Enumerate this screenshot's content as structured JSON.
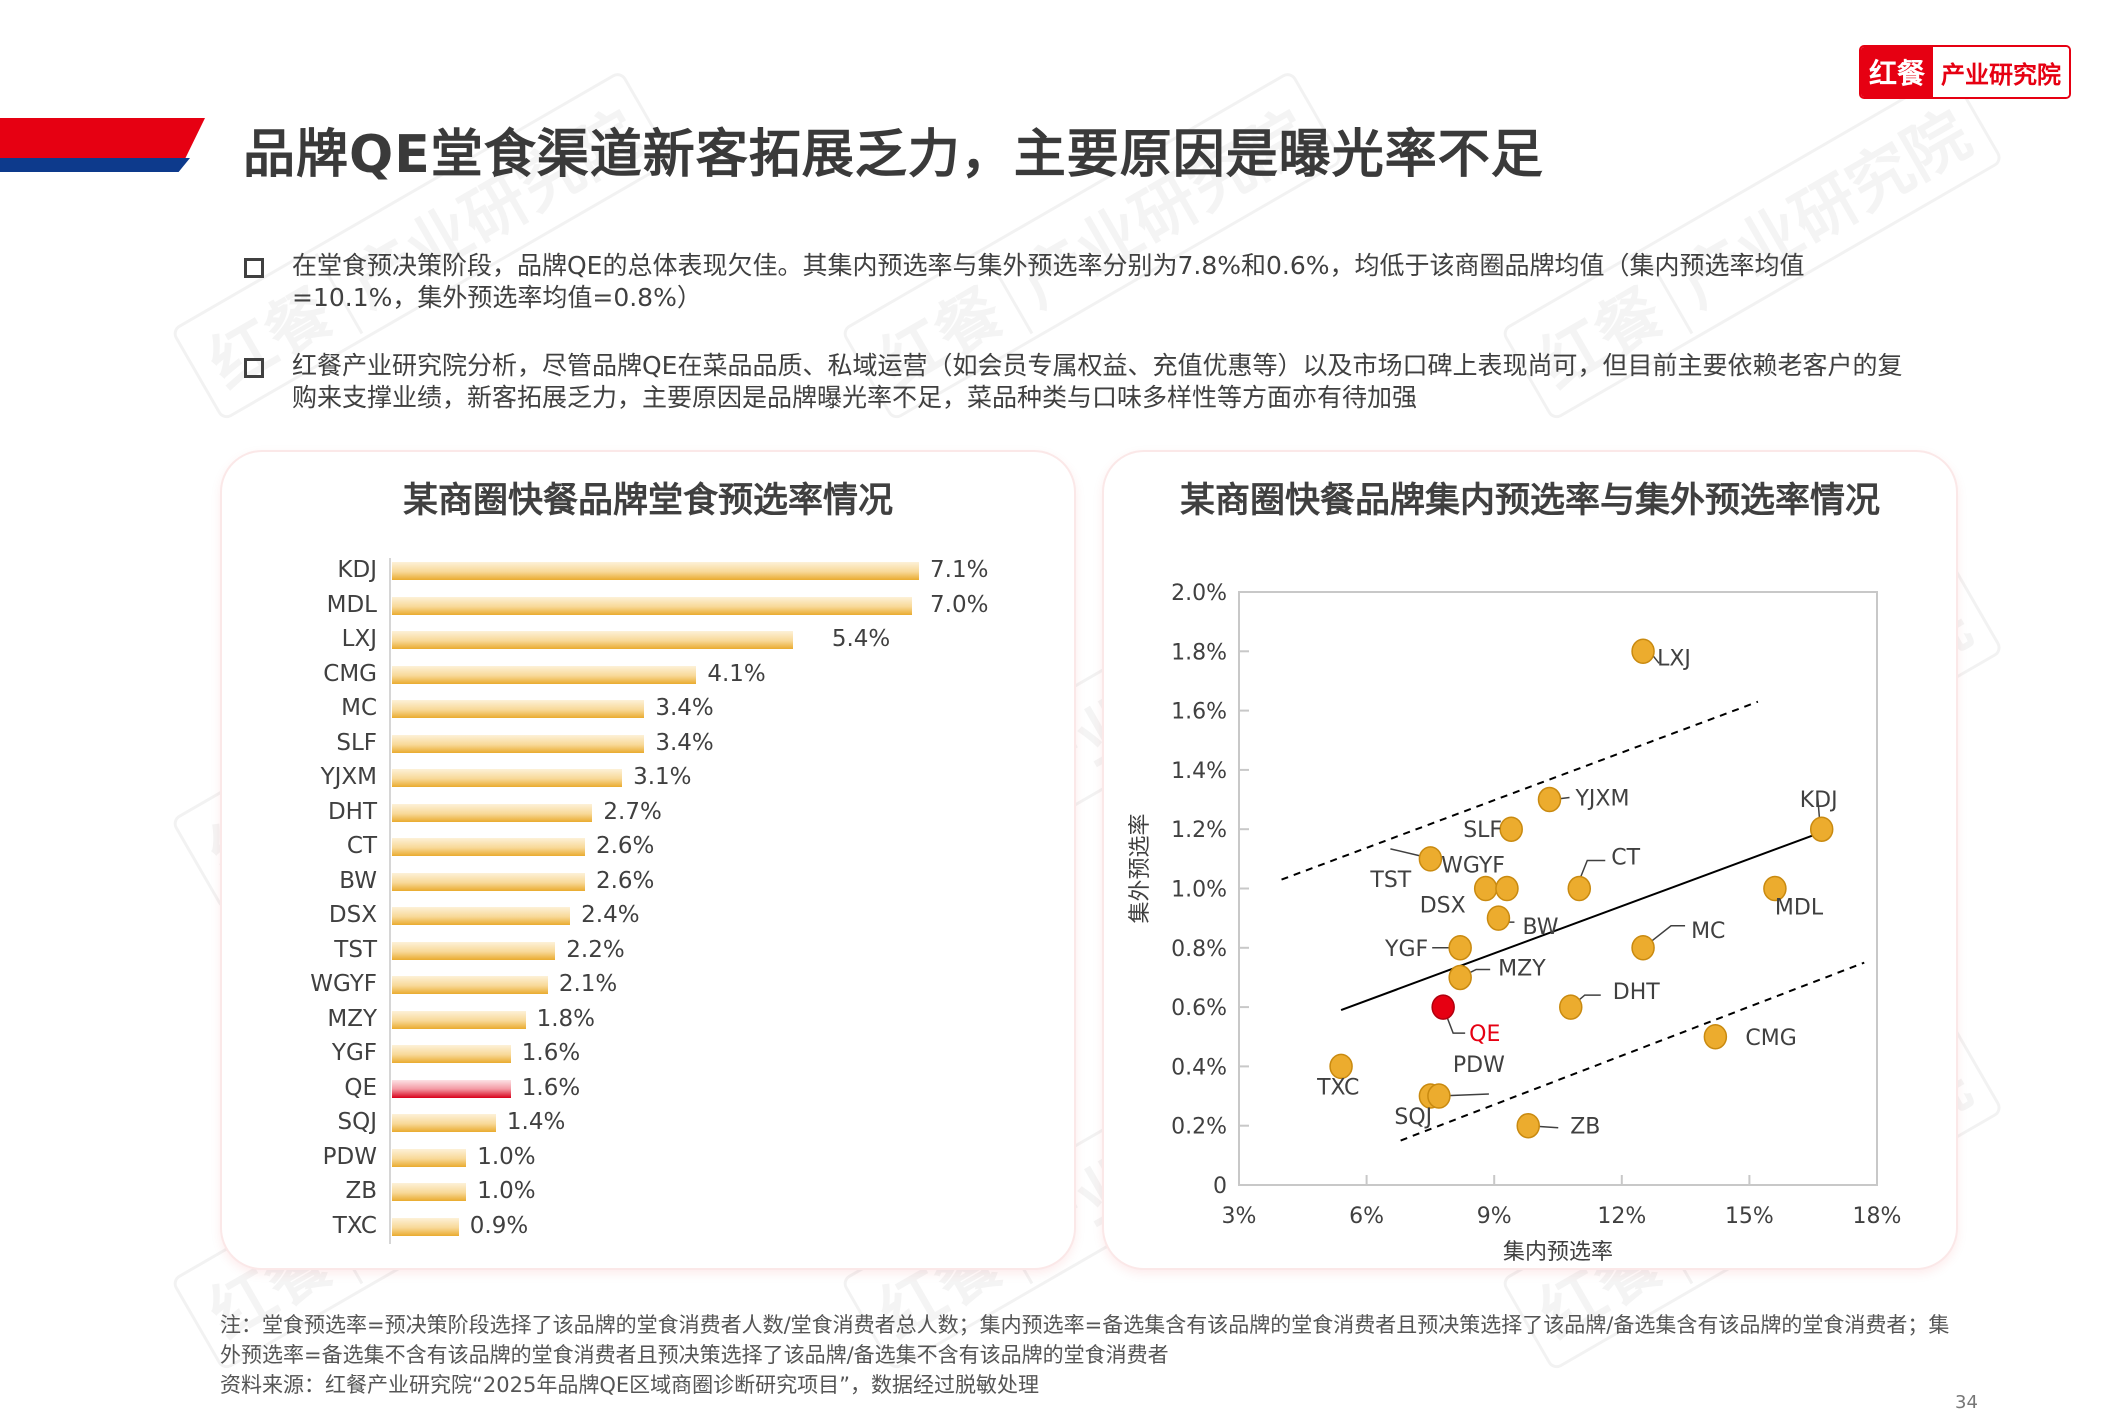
{
  "logo": {
    "brand": "红餐",
    "org": "产业研究院"
  },
  "watermark": {
    "brand": "红餐",
    "org": "产业研究院"
  },
  "page_title": "品牌QE堂食渠道新客拓展乏力，主要原因是曝光率不足",
  "bullets": [
    "在堂食预决策阶段，品牌QE的总体表现欠佳。其集内预选率与集外预选率分别为7.8%和0.6%，均低于该商圈品牌均值（集内预选率均值=10.1%，集外预选率均值=0.8%）",
    "红餐产业研究院分析，尽管品牌QE在菜品品质、私域运营（如会员专属权益、充值优惠等）以及市场口碑上表现尚可，但目前主要依赖老客户的复购来支撑业绩，新客拓展乏力，主要原因是品牌曝光率不足，菜品种类与口味多样性等方面亦有待加强"
  ],
  "footnotes": [
    "注：堂食预选率=预决策阶段选择了该品牌的堂食消费者人数/堂食消费者总人数；集内预选率=备选集含有该品牌的堂食消费者且预决策选择了该品牌/备选集含有该品牌的堂食消费者；集外预选率=备选集不含有该品牌的堂食消费者且预决策选择了该品牌/备选集不含有该品牌的堂食消费者",
    "资料来源：红餐产业研究院“2025年品牌QE区域商圈诊断研究项目”，数据经过脱敏处理"
  ],
  "page_number": "34",
  "colors": {
    "brand_red": "#e60012",
    "brand_blue": "#0d3a8c",
    "bar_gold": "#e9ab2f",
    "highlight_red": "#d8001a"
  },
  "chart_data": [
    {
      "type": "bar",
      "orientation": "horizontal",
      "title": "某商圈快餐品牌堂食预选率情况",
      "categories": [
        "KDJ",
        "MDL",
        "LXJ",
        "CMG",
        "MC",
        "SLF",
        "YJXM",
        "DHT",
        "CT",
        "BW",
        "DSX",
        "TST",
        "WGYF",
        "MZY",
        "YGF",
        "QE",
        "SQJ",
        "PDW",
        "ZB",
        "TXC"
      ],
      "values": [
        7.1,
        7.0,
        5.4,
        4.1,
        3.4,
        3.4,
        3.1,
        2.7,
        2.6,
        2.6,
        2.4,
        2.2,
        2.1,
        1.8,
        1.6,
        1.6,
        1.4,
        1.0,
        1.0,
        0.9
      ],
      "value_labels": [
        "7.1%",
        "7.0%",
        "5.4%",
        "4.1%",
        "3.4%",
        "3.4%",
        "3.1%",
        "2.7%",
        "2.6%",
        "2.6%",
        "2.4%",
        "2.2%",
        "2.1%",
        "1.8%",
        "1.6%",
        "1.6%",
        "1.4%",
        "1.0%",
        "1.0%",
        "0.9%"
      ],
      "highlight": "QE",
      "unit": "%",
      "xlabel": "",
      "ylabel": "",
      "xlim": [
        0,
        7.1
      ],
      "grid": false
    },
    {
      "type": "scatter",
      "title": "某商圈快餐品牌集内预选率与集外预选率情况",
      "xlabel": "集内预选率",
      "ylabel": "集外预选率",
      "xlim": [
        3,
        18
      ],
      "ylim": [
        0,
        2.0
      ],
      "xticks": [
        3,
        6,
        9,
        12,
        15,
        18
      ],
      "xtick_labels": [
        "3%",
        "6%",
        "9%",
        "12%",
        "15%",
        "18%"
      ],
      "yticks": [
        0,
        0.2,
        0.4,
        0.6,
        0.8,
        1.0,
        1.2,
        1.4,
        1.6,
        1.8,
        2.0
      ],
      "ytick_labels": [
        "0",
        "0.2%",
        "0.4%",
        "0.6%",
        "0.8%",
        "1.0%",
        "1.2%",
        "1.4%",
        "1.6%",
        "1.8%",
        "2.0%"
      ],
      "grid": false,
      "highlight": "QE",
      "points": [
        {
          "label": "LXJ",
          "x": 12.5,
          "y": 1.8
        },
        {
          "label": "YJXM",
          "x": 10.3,
          "y": 1.3
        },
        {
          "label": "KDJ",
          "x": 16.7,
          "y": 1.2
        },
        {
          "label": "SLF",
          "x": 9.4,
          "y": 1.2
        },
        {
          "label": "TST",
          "x": 7.5,
          "y": 1.1
        },
        {
          "label": "DSX",
          "x": 8.8,
          "y": 1.0
        },
        {
          "label": "WGYF",
          "x": 9.3,
          "y": 1.0
        },
        {
          "label": "CT",
          "x": 11.0,
          "y": 1.0
        },
        {
          "label": "MDL",
          "x": 15.6,
          "y": 1.0
        },
        {
          "label": "BW",
          "x": 9.1,
          "y": 0.9
        },
        {
          "label": "YGF",
          "x": 8.2,
          "y": 0.8
        },
        {
          "label": "MC",
          "x": 12.5,
          "y": 0.8
        },
        {
          "label": "MZY",
          "x": 8.2,
          "y": 0.7
        },
        {
          "label": "QE",
          "x": 7.8,
          "y": 0.6
        },
        {
          "label": "DHT",
          "x": 10.8,
          "y": 0.6
        },
        {
          "label": "CMG",
          "x": 14.2,
          "y": 0.5
        },
        {
          "label": "TXC",
          "x": 5.4,
          "y": 0.4
        },
        {
          "label": "SQJ",
          "x": 7.5,
          "y": 0.3
        },
        {
          "label": "PDW",
          "x": 7.7,
          "y": 0.3
        },
        {
          "label": "ZB",
          "x": 9.8,
          "y": 0.2
        }
      ],
      "lines": [
        {
          "name": "trend",
          "style": "solid",
          "from": [
            5.4,
            0.59
          ],
          "to": [
            16.7,
            1.19
          ]
        },
        {
          "name": "upper-bound",
          "style": "dashed",
          "from": [
            4.0,
            1.03
          ],
          "to": [
            15.2,
            1.63
          ]
        },
        {
          "name": "lower-bound",
          "style": "dashed",
          "from": [
            6.8,
            0.15
          ],
          "to": [
            17.7,
            0.75
          ]
        }
      ]
    }
  ]
}
